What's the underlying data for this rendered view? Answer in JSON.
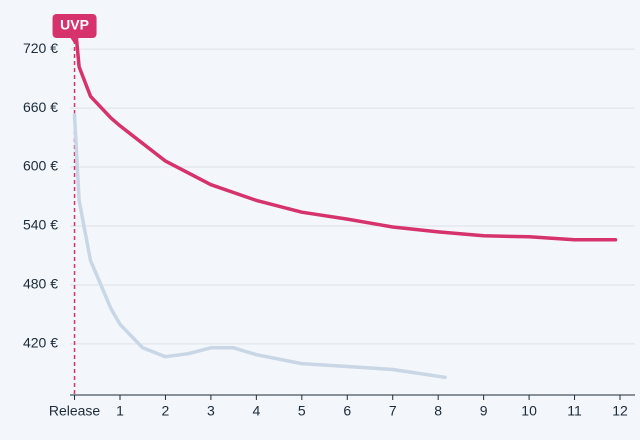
{
  "chart_data": {
    "type": "line",
    "annotation": "UVP",
    "xlim": [
      -0.1,
      12
    ],
    "ylim": [
      368,
      770
    ],
    "xticks": [
      {
        "value": 0,
        "label": "Release"
      },
      1,
      2,
      3,
      4,
      5,
      6,
      7,
      8,
      9,
      10,
      11,
      12
    ],
    "yticks": [
      {
        "value": 420,
        "label": "420 €"
      },
      {
        "value": 480,
        "label": "480 €"
      },
      {
        "value": 540,
        "label": "540 €"
      },
      {
        "value": 600,
        "label": "600 €"
      },
      {
        "value": 660,
        "label": "660 €"
      },
      {
        "value": 720,
        "label": "720 €"
      }
    ],
    "grid": true,
    "series": [
      {
        "color": "#d6336c",
        "x": [
          0,
          0.1,
          0.35,
          0.8,
          1,
          2,
          3,
          4,
          5,
          6,
          7,
          8,
          9,
          10,
          11,
          11.9
        ],
        "values": [
          752,
          702,
          672,
          650,
          642,
          606,
          582,
          566,
          554,
          547,
          539,
          534,
          530,
          529,
          526,
          526
        ]
      },
      {
        "color": "#c8d6e5",
        "x": [
          0,
          0.1,
          0.35,
          0.8,
          1,
          1.5,
          2,
          2.5,
          3,
          3.5,
          4,
          5,
          6,
          7,
          8.15
        ],
        "values": [
          653,
          566,
          505,
          456,
          440,
          416,
          407,
          410,
          416,
          416,
          409,
          400,
          397,
          394,
          386
        ]
      }
    ]
  }
}
